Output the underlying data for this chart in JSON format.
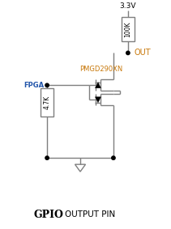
{
  "title_gpio": "GPIO",
  "title_rest": "OUTPUT PIN",
  "label_3v3": "3.3V",
  "label_out": "OUT",
  "label_fpga": "FPGA",
  "label_ic": "PMGD290XN",
  "label_r1": "100K",
  "label_r2": "4.7K",
  "line_color": "#7f7f7f",
  "dot_color": "#000000",
  "text_color_main": "#000000",
  "text_color_orange": "#C8780A",
  "text_color_blue": "#2255AA",
  "bg_color": "#ffffff",
  "lw": 1.0
}
